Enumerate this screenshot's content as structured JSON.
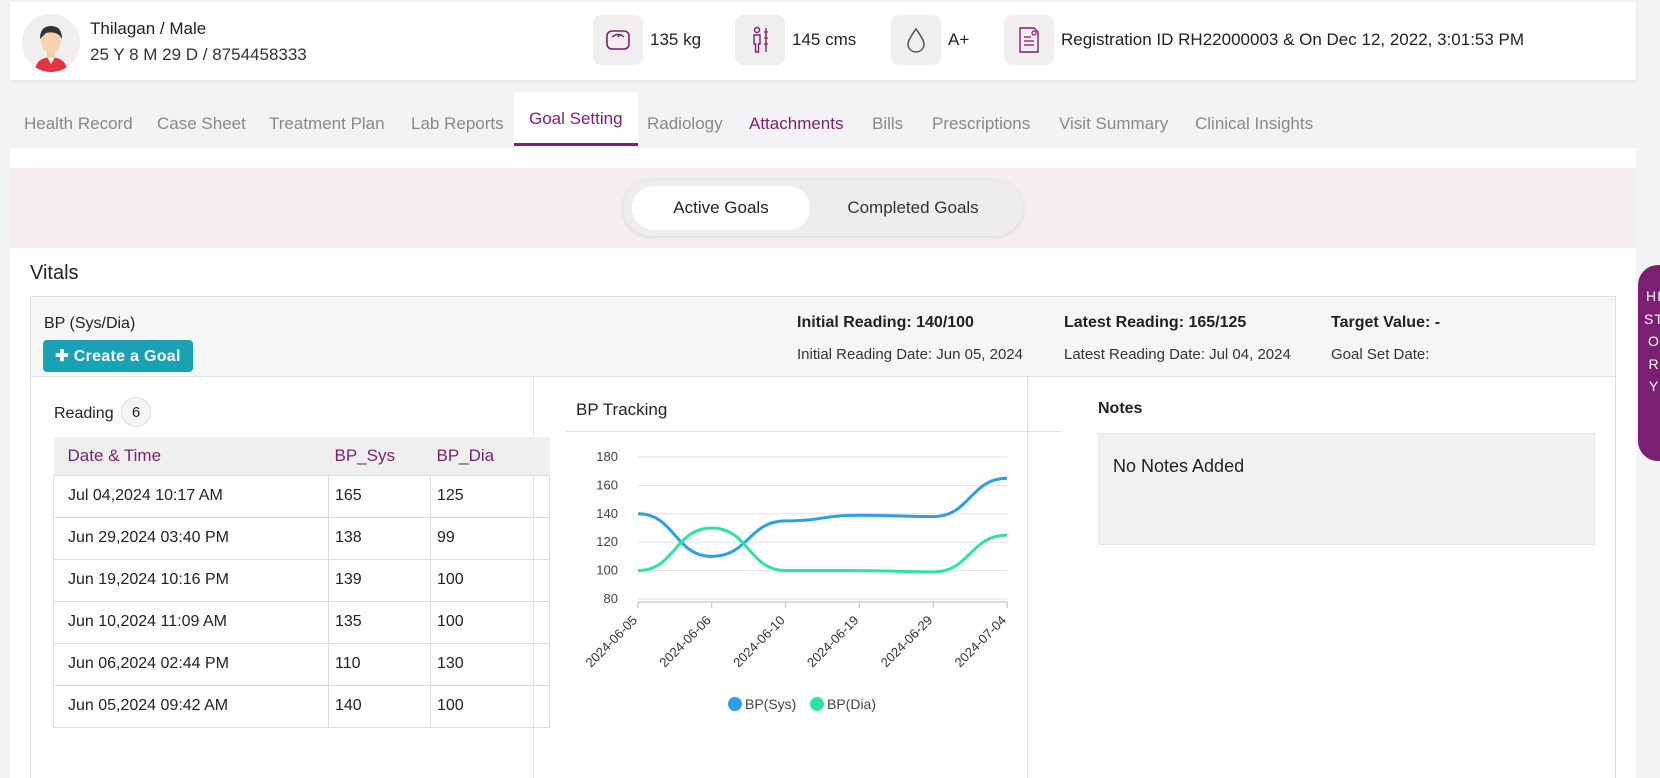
{
  "patient": {
    "name_gender": "Thilagan / Male",
    "age_phone": "25 Y 8 M 29 D / 8754458333",
    "weight": "135 kg",
    "height": "145 cms",
    "blood_group": "A+",
    "registration": "Registration ID RH22000003 & On Dec 12, 2022, 3:01:53 PM"
  },
  "tabs": [
    "Health Record",
    "Case Sheet",
    "Treatment Plan",
    "Lab Reports",
    "Goal Setting",
    "Radiology",
    "Attachments",
    "Bills",
    "Prescriptions",
    "Visit Summary",
    "Clinical Insights"
  ],
  "active_tab": "Goal Setting",
  "goal_toggle": {
    "active": "Active Goals",
    "completed": "Completed Goals"
  },
  "section_title": "Vitals",
  "vital": {
    "label": "BP (Sys/Dia)",
    "create_button": "Create a Goal",
    "initial_reading": "Initial Reading: 140/100",
    "initial_date": "Initial Reading Date: Jun 05, 2024",
    "latest_reading": "Latest Reading: 165/125",
    "latest_date": "Latest Reading Date: Jul 04, 2024",
    "target_value": "Target Value: -",
    "goal_set_date": "Goal Set Date:"
  },
  "readings": {
    "title": "Reading",
    "count": "6",
    "headers": [
      "Date & Time",
      "BP_Sys",
      "BP_Dia"
    ],
    "rows": [
      [
        "Jul 04,2024 10:17 AM",
        "165",
        "125"
      ],
      [
        "Jun 29,2024 03:40 PM",
        "138",
        "99"
      ],
      [
        "Jun 19,2024 10:16 PM",
        "139",
        "100"
      ],
      [
        "Jun 10,2024 11:09 AM",
        "135",
        "100"
      ],
      [
        "Jun 06,2024 02:44 PM",
        "110",
        "130"
      ],
      [
        "Jun 05,2024 09:42 AM",
        "140",
        "100"
      ]
    ]
  },
  "chart_title": "BP Tracking",
  "chart_data": {
    "type": "line",
    "categories": [
      "2024-06-05",
      "2024-06-06",
      "2024-06-10",
      "2024-06-19",
      "2024-06-29",
      "2024-07-04"
    ],
    "series": [
      {
        "name": "BP(Sys)",
        "values": [
          140,
          110,
          135,
          139,
          138,
          165
        ],
        "color": "#2f9ee8"
      },
      {
        "name": "BP(Dia)",
        "values": [
          100,
          130,
          100,
          100,
          99,
          125
        ],
        "color": "#2ee3a0"
      }
    ],
    "yticks": [
      80,
      100,
      120,
      140,
      160,
      180
    ],
    "ylim": [
      80,
      180
    ],
    "grid": true,
    "legend": "bottom"
  },
  "notes": {
    "title": "Notes",
    "text": "No Notes Added"
  },
  "history_label": "HISTORY",
  "colors": {
    "accent": "#7a1f72",
    "button": "#1ba1b4"
  }
}
